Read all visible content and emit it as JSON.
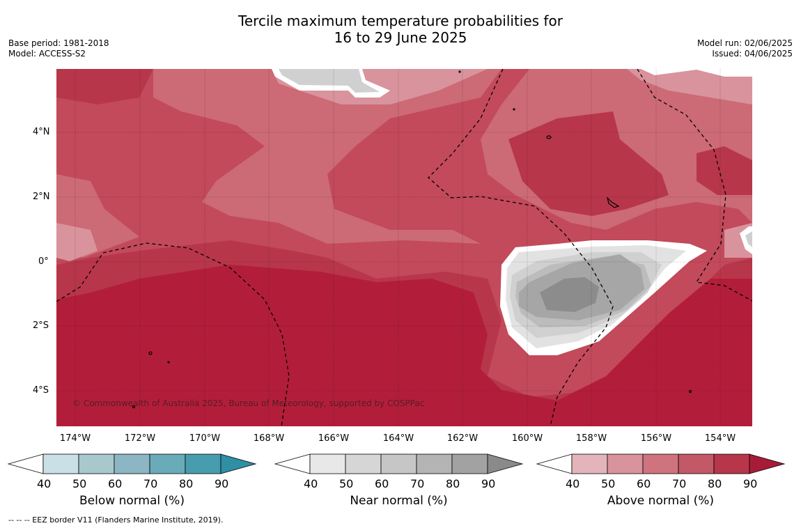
{
  "header": {
    "title_line1": "Tercile maximum temperature probabilities for",
    "title_line2": "16 to 29 June 2025",
    "base_period": "Base period: 1981-2018",
    "model": "Model: ACCESS-S2",
    "model_run": "Model run: 02/06/2025",
    "issued": "Issued: 04/06/2025"
  },
  "map": {
    "lat_labels": [
      "4°N",
      "2°N",
      "0°",
      "2°S",
      "4°S"
    ],
    "lon_labels": [
      "174°W",
      "172°W",
      "170°W",
      "168°W",
      "166°W",
      "164°W",
      "162°W",
      "160°W",
      "158°W",
      "156°W",
      "154°W"
    ],
    "credit": "© Commonwealth of Australia 2025, Bureau of Meteorology, supported by COSPPac"
  },
  "colorbars": [
    {
      "title": "Below normal (%)",
      "ticks": [
        "40",
        "50",
        "60",
        "70",
        "80",
        "90"
      ],
      "colors": [
        "#c8e0e6",
        "#a8c8ce",
        "#8cb6c3",
        "#6aabba",
        "#479dae",
        "#2e8fa5"
      ]
    },
    {
      "title": "Near normal (%)",
      "ticks": [
        "40",
        "50",
        "60",
        "70",
        "80",
        "90"
      ],
      "colors": [
        "#e8e8e8",
        "#d6d6d6",
        "#c6c6c6",
        "#b4b4b4",
        "#a2a2a2",
        "#8a8a8a"
      ]
    },
    {
      "title": "Above normal (%)",
      "ticks": [
        "40",
        "50",
        "60",
        "70",
        "80",
        "90"
      ],
      "colors": [
        "#e3b5bb",
        "#d9939d",
        "#cf737f",
        "#c35866",
        "#b8364a",
        "#a81b38"
      ]
    }
  ],
  "footnote": "--  --  -- EEZ border V11 (Flanders Marine Institute, 2019).",
  "palette": {
    "above_40": "#e3b5bb",
    "above_50": "#d9939d",
    "above_60": "#cf737f",
    "above_70": "#c35866",
    "above_80": "#b8364a",
    "above_90": "#b21e3a",
    "near_40": "#e2e2e2",
    "near_50": "#d0d0d0",
    "near_60": "#bcbcbc",
    "near_70": "#a6a6a6",
    "near_80": "#8c8c8c"
  }
}
